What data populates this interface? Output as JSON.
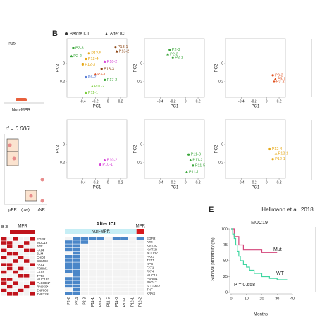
{
  "panel_a": {
    "title": "#15",
    "group": "Non-MPR",
    "p_text": "d = 0.006",
    "categories": [
      "pPR",
      "(ow)",
      "pNR"
    ]
  },
  "panel_b": {
    "label": "B",
    "legend": [
      "Before ICI",
      "After ICI"
    ],
    "xlabel": "PC1",
    "ylabel": "PC2",
    "xlim": [
      -0.65,
      0.3
    ],
    "ylim": [
      -0.37,
      0.27
    ],
    "xticks": [
      -0.4,
      -0.2,
      0,
      0.2
    ],
    "yticks": [
      0,
      -0.2
    ],
    "panels": [
      {
        "points": [
          {
            "label": "P2-3",
            "x": -0.55,
            "y": 0.17,
            "color": "#3aa63a",
            "shape": "dot"
          },
          {
            "label": "P13-1",
            "x": 0.12,
            "y": 0.18,
            "color": "#8b4513",
            "shape": "dot"
          },
          {
            "label": "P13-2",
            "x": 0.14,
            "y": 0.13,
            "color": "#8b4513",
            "shape": "triangle"
          },
          {
            "label": "P2-2",
            "x": -0.58,
            "y": 0.08,
            "color": "#3aa63a",
            "shape": "triangle"
          },
          {
            "label": "P12-5",
            "x": -0.3,
            "y": 0.11,
            "color": "#e6a817",
            "shape": "dot"
          },
          {
            "label": "P12-4",
            "x": -0.35,
            "y": 0.05,
            "color": "#e6a817",
            "shape": "dot"
          },
          {
            "label": "P10-2",
            "x": -0.05,
            "y": 0.02,
            "color": "#d63fd6",
            "shape": "triangle"
          },
          {
            "label": "P12-3",
            "x": -0.4,
            "y": -0.01,
            "color": "#e6a817",
            "shape": "dot"
          },
          {
            "label": "P13-3",
            "x": -0.1,
            "y": -0.06,
            "color": "#8b4513",
            "shape": "dot"
          },
          {
            "label": "P3-1",
            "x": -0.2,
            "y": -0.12,
            "color": "#e0501e",
            "shape": "triangle"
          },
          {
            "label": "P6-2",
            "x": -0.35,
            "y": -0.15,
            "color": "#5b7fd6",
            "shape": "dot"
          },
          {
            "label": "P17-2",
            "x": -0.05,
            "y": -0.18,
            "color": "#3aa63a",
            "shape": "dot"
          },
          {
            "label": "P11-2",
            "x": -0.25,
            "y": -0.25,
            "color": "#7acc3a",
            "shape": "triangle"
          },
          {
            "label": "P11-1",
            "x": -0.35,
            "y": -0.32,
            "color": "#7acc3a",
            "shape": "triangle"
          }
        ]
      },
      {
        "points": [
          {
            "label": "P2-3",
            "x": -0.25,
            "y": 0.15,
            "color": "#3aa63a",
            "shape": "dot"
          },
          {
            "label": "P2-2",
            "x": -0.28,
            "y": 0.1,
            "color": "#3aa63a",
            "shape": "triangle"
          },
          {
            "label": "P2-1",
            "x": -0.2,
            "y": 0.06,
            "color": "#3aa63a",
            "shape": "dot"
          }
        ]
      },
      {
        "points": [
          {
            "label": "P3-3",
            "x": 0.1,
            "y": -0.13,
            "color": "#e0501e",
            "shape": "dot"
          },
          {
            "label": "P3-1",
            "x": 0.14,
            "y": -0.17,
            "color": "#e0501e",
            "shape": "triangle"
          },
          {
            "label": "P3-2",
            "x": 0.12,
            "y": -0.2,
            "color": "#e0501e",
            "shape": "dot"
          }
        ]
      },
      {
        "points": [
          {
            "label": "P10-2",
            "x": -0.05,
            "y": -0.17,
            "color": "#d63fd6",
            "shape": "triangle"
          },
          {
            "label": "P10-1",
            "x": -0.12,
            "y": -0.22,
            "color": "#d63fd6",
            "shape": "dot"
          }
        ]
      },
      {
        "points": [
          {
            "label": "P11-3",
            "x": 0.05,
            "y": -0.11,
            "color": "#3aa63a",
            "shape": "dot"
          },
          {
            "label": "P11-2",
            "x": 0.08,
            "y": -0.17,
            "color": "#3aa63a",
            "shape": "triangle"
          },
          {
            "label": "P11-5",
            "x": 0.12,
            "y": -0.23,
            "color": "#3aa63a",
            "shape": "dot"
          },
          {
            "label": "P11-1",
            "x": 0.02,
            "y": -0.3,
            "color": "#3aa63a",
            "shape": "triangle"
          }
        ]
      },
      {
        "points": [
          {
            "label": "P12-4",
            "x": 0.05,
            "y": -0.05,
            "color": "#e6a817",
            "shape": "dot"
          },
          {
            "label": "P12-2",
            "x": 0.15,
            "y": -0.1,
            "color": "#e6a817",
            "shape": "triangle"
          },
          {
            "label": "P12-1",
            "x": 0.1,
            "y": -0.16,
            "color": "#e6a817",
            "shape": "dot"
          }
        ]
      }
    ]
  },
  "panel_c": {
    "title": "ICI",
    "group": "MPR",
    "color": "#c0141c",
    "genes": [
      "EGFR",
      "MUC16",
      "ATR",
      "FAT4",
      "BLM",
      "CHD2",
      "CSMD3",
      "FAT1",
      "PBRM1",
      "FAT3",
      "TP53",
      "MUC19*",
      "PLCHB1*",
      "RAD50*",
      "ZNF808*",
      "ZNF729*"
    ],
    "cells": [
      [
        1,
        0,
        1,
        0,
        0,
        1
      ],
      [
        1,
        1,
        0,
        0,
        1,
        0
      ],
      [
        0,
        1,
        0,
        1,
        0,
        0
      ],
      [
        1,
        0,
        0,
        0,
        1,
        1
      ],
      [
        0,
        1,
        1,
        0,
        0,
        0
      ],
      [
        1,
        0,
        0,
        1,
        0,
        0
      ],
      [
        0,
        0,
        1,
        0,
        1,
        0
      ],
      [
        1,
        1,
        0,
        0,
        0,
        1
      ],
      [
        0,
        1,
        0,
        1,
        0,
        0
      ],
      [
        1,
        0,
        1,
        0,
        0,
        0
      ],
      [
        0,
        0,
        0,
        1,
        1,
        0
      ],
      [
        1,
        1,
        0,
        0,
        0,
        0
      ],
      [
        1,
        0,
        1,
        0,
        0,
        1
      ],
      [
        0,
        1,
        0,
        0,
        1,
        0
      ],
      [
        1,
        0,
        0,
        1,
        0,
        0
      ],
      [
        0,
        1,
        1,
        0,
        0,
        1
      ]
    ]
  },
  "panel_d": {
    "title": "After ICI",
    "groups": [
      "Non-MPR",
      "MPR"
    ],
    "color": "#4a86c8",
    "group_colors": [
      "#c6eef5",
      "#d7191c"
    ],
    "genes": [
      "EGFR",
      "ATR",
      "KMT2C",
      "KMT2D",
      "NCOR2",
      "PAX7",
      "TET1",
      "XPC",
      "FAT1",
      "FAT4",
      "MUC16",
      "PBRM1",
      "RAD17",
      "SLC34A2",
      "TNF",
      "KRAS"
    ],
    "columns": [
      "P2-2",
      "P2-4",
      "P2-3",
      "P11-1",
      "P11-2",
      "P11-5",
      "P11-3",
      "P10-1",
      "P12-1",
      "P12-2"
    ],
    "mpr_from": 9,
    "cells": [
      [
        0,
        1,
        1,
        1,
        1,
        0,
        1,
        1,
        0,
        1
      ],
      [
        1,
        1,
        1,
        0,
        0,
        0,
        0,
        0,
        0,
        0
      ],
      [
        1,
        1,
        0,
        0,
        0,
        0,
        0,
        0,
        0,
        0
      ],
      [
        1,
        1,
        0,
        0,
        0,
        0,
        0,
        0,
        0,
        0
      ],
      [
        0,
        1,
        0,
        0,
        0,
        0,
        0,
        0,
        0,
        0
      ],
      [
        1,
        1,
        0,
        0,
        0,
        0,
        0,
        0,
        0,
        0
      ],
      [
        1,
        1,
        0,
        0,
        0,
        0,
        0,
        0,
        0,
        0
      ],
      [
        1,
        1,
        0,
        0,
        0,
        0,
        0,
        0,
        0,
        0
      ],
      [
        1,
        1,
        0,
        0,
        0,
        0,
        0,
        0,
        0,
        0
      ],
      [
        1,
        1,
        0,
        0,
        0,
        0,
        0,
        0,
        0,
        0
      ],
      [
        0,
        1,
        0,
        0,
        0,
        0,
        0,
        0,
        0,
        0
      ],
      [
        1,
        1,
        0,
        0,
        0,
        0,
        0,
        0,
        0,
        0
      ],
      [
        1,
        1,
        0,
        0,
        0,
        0,
        0,
        0,
        0,
        0
      ],
      [
        1,
        1,
        0,
        0,
        0,
        0,
        0,
        0,
        0,
        0
      ],
      [
        0,
        1,
        0,
        0,
        0,
        0,
        0,
        0,
        0,
        0
      ],
      [
        1,
        1,
        0,
        0,
        0,
        0,
        0,
        0,
        0,
        0
      ]
    ]
  },
  "chart_data": {
    "type": "line",
    "label": "E",
    "title": "Hellmann et al. 2018",
    "subtitle": "MUC19",
    "xlabel": "Months",
    "ylabel": "Survival probability (%)",
    "annotation": "P = 0.658",
    "xlim": [
      0,
      40
    ],
    "ylim": [
      0,
      100
    ],
    "xticks": [
      0,
      10,
      20,
      30,
      40
    ],
    "yticks": [
      0,
      25,
      50,
      75,
      100
    ],
    "series": [
      {
        "name": "Mut",
        "color": "#d4447a",
        "x": [
          0,
          2,
          5,
          8,
          12,
          20,
          30
        ],
        "values": [
          100,
          88,
          75,
          67,
          67,
          63,
          63
        ]
      },
      {
        "name": "WT",
        "color": "#3fd6a0",
        "x": [
          0,
          1,
          2,
          3,
          4,
          5,
          6,
          8,
          10,
          12,
          15,
          20,
          25,
          30,
          37
        ],
        "values": [
          100,
          92,
          85,
          75,
          65,
          57,
          50,
          44,
          40,
          35,
          30,
          25,
          22,
          20,
          20
        ]
      }
    ]
  }
}
